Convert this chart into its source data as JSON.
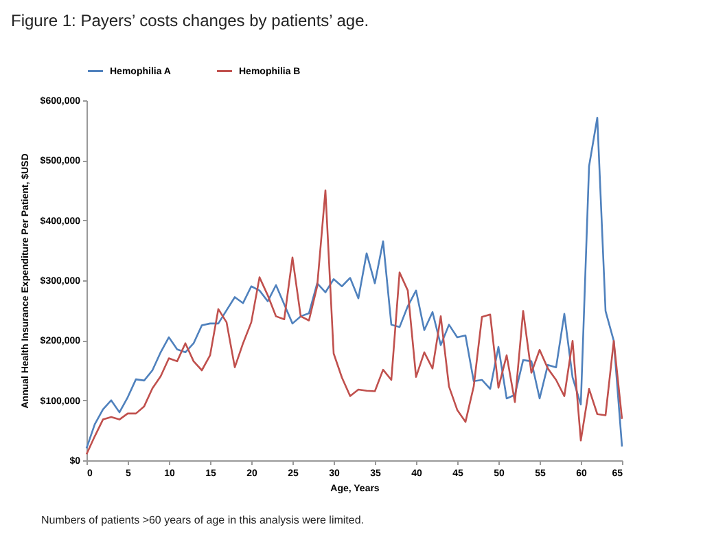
{
  "chart_data": {
    "type": "line",
    "title": "Figure 1: Payers’ costs changes by patients’ age.",
    "xlabel": "Age, Years",
    "ylabel": "Annual Health Insurance Expenditure  Per Patient, $USD",
    "x": [
      0,
      1,
      2,
      3,
      4,
      5,
      6,
      7,
      8,
      9,
      10,
      11,
      12,
      13,
      14,
      15,
      16,
      17,
      18,
      19,
      20,
      21,
      22,
      23,
      24,
      25,
      26,
      27,
      28,
      29,
      30,
      31,
      32,
      33,
      34,
      35,
      36,
      37,
      38,
      39,
      40,
      41,
      42,
      43,
      44,
      45,
      46,
      47,
      48,
      49,
      50,
      51,
      52,
      53,
      54,
      55,
      56,
      57,
      58,
      59,
      60,
      61,
      62,
      63,
      64,
      65
    ],
    "series": [
      {
        "name": "Hemophilia A",
        "color": "#4f81bd",
        "values": [
          20000,
          60000,
          85000,
          100000,
          80000,
          105000,
          135000,
          133000,
          150000,
          180000,
          205000,
          185000,
          180000,
          195000,
          225000,
          228000,
          228000,
          250000,
          272000,
          262000,
          290000,
          283000,
          265000,
          292000,
          260000,
          228000,
          240000,
          245000,
          295000,
          280000,
          302000,
          290000,
          304000,
          270000,
          345000,
          295000,
          365000,
          226000,
          222000,
          257000,
          283000,
          217000,
          247000,
          192000,
          226000,
          205000,
          208000,
          132000,
          134000,
          119000,
          189000,
          103000,
          109000,
          167000,
          165000,
          103000,
          159000,
          155000,
          244000,
          138000,
          93000,
          490000,
          571000,
          249000,
          199000,
          23000
        ]
      },
      {
        "name": "Hemophilia B",
        "color": "#c0504d",
        "values": [
          10000,
          40000,
          68000,
          72000,
          68000,
          78000,
          78000,
          90000,
          120000,
          140000,
          170000,
          165000,
          195000,
          165000,
          150000,
          175000,
          252000,
          230000,
          155000,
          195000,
          230000,
          305000,
          275000,
          240000,
          235000,
          338000,
          240000,
          233000,
          290000,
          450000,
          178000,
          138000,
          107000,
          118000,
          116000,
          115000,
          151000,
          134000,
          313000,
          283000,
          139000,
          180000,
          153000,
          240000,
          123000,
          84000,
          64000,
          123000,
          239000,
          243000,
          121000,
          175000,
          97000,
          249000,
          146000,
          184000,
          153000,
          134000,
          107000,
          199000,
          33000,
          119000,
          77000,
          75000,
          199000,
          69000
        ]
      }
    ],
    "xlim": [
      0,
      65
    ],
    "xticks": [
      0,
      5,
      10,
      15,
      20,
      25,
      30,
      35,
      40,
      45,
      50,
      55,
      60,
      65
    ],
    "ylim": [
      0,
      600000
    ],
    "yticks": [
      {
        "value": 0,
        "label": "$0"
      },
      {
        "value": 100000,
        "label": "$100,000"
      },
      {
        "value": 200000,
        "label": "$200,000"
      },
      {
        "value": 300000,
        "label": "$300,000"
      },
      {
        "value": 400000,
        "label": "$400,000"
      },
      {
        "value": 500000,
        "label": "$500,000"
      },
      {
        "value": 600000,
        "label": "$600,000"
      }
    ],
    "legend": "top",
    "grid": false,
    "marker": "none",
    "line_style": "solid",
    "annotations": [
      "Numbers of patients >60 years of age in this analysis were limited."
    ]
  }
}
